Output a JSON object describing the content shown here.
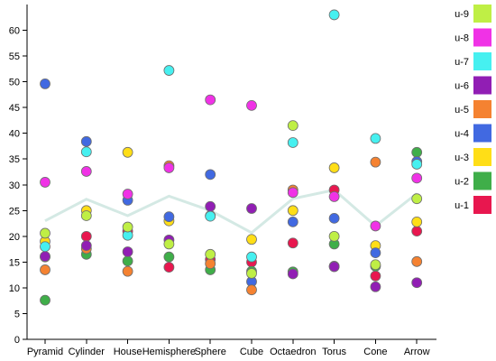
{
  "chart_data": {
    "type": "scatter",
    "categories": [
      "Pyramid",
      "Cylinder",
      "House",
      "Hemisphere",
      "Sphere",
      "Cube",
      "Octaedron",
      "Torus",
      "Cone",
      "Arrow"
    ],
    "ylim": [
      0,
      65
    ],
    "yticks": [
      0,
      5,
      10,
      15,
      20,
      25,
      30,
      35,
      40,
      45,
      50,
      55,
      60
    ],
    "legend_position": "right",
    "series": [
      {
        "name": "u-1",
        "color": "#e8174f",
        "values": [
          16,
          20,
          21,
          14,
          15.5,
          15,
          18.7,
          29,
          12.3,
          21
        ]
      },
      {
        "name": "u-2",
        "color": "#3fae49",
        "values": [
          7.6,
          16.5,
          15.2,
          16,
          13.5,
          13.2,
          13.1,
          18.5,
          14.2,
          36.3
        ]
      },
      {
        "name": "u-3",
        "color": "#ffde17",
        "values": [
          19,
          25,
          36.3,
          23,
          24,
          19.4,
          25,
          33.3,
          18.2,
          22.8
        ]
      },
      {
        "name": "u-4",
        "color": "#4169e1",
        "values": [
          49.6,
          38.4,
          27,
          23.8,
          32,
          11.2,
          22.8,
          23.5,
          16.8,
          34.5
        ]
      },
      {
        "name": "u-5",
        "color": "#f58231",
        "values": [
          13.5,
          17.6,
          13.2,
          33.7,
          14.7,
          9.6,
          29,
          14.2,
          34.4,
          15.1
        ]
      },
      {
        "name": "u-6",
        "color": "#911eb4",
        "values": [
          16.1,
          18.2,
          17,
          19.3,
          25.8,
          25.4,
          12.7,
          14.1,
          10.2,
          11
        ]
      },
      {
        "name": "u-7",
        "color": "#46f0f0",
        "values": [
          18,
          36.4,
          20.2,
          52.2,
          23.9,
          16,
          38.2,
          63,
          39,
          34
        ]
      },
      {
        "name": "u-8",
        "color": "#f032e6",
        "values": [
          30.5,
          32.6,
          28.2,
          33.3,
          46.5,
          45.4,
          28.5,
          27.7,
          22,
          31.3
        ]
      },
      {
        "name": "u-9",
        "color": "#bfef45",
        "values": [
          20.6,
          24,
          21.8,
          18.5,
          16.5,
          12.8,
          41.5,
          20,
          14.5,
          27.3
        ]
      }
    ],
    "average": {
      "color": "#d4e9e4",
      "values": [
        23,
        27.2,
        24,
        27.8,
        25,
        20.7,
        27.3,
        29,
        22,
        28.3
      ]
    },
    "grid": false
  }
}
